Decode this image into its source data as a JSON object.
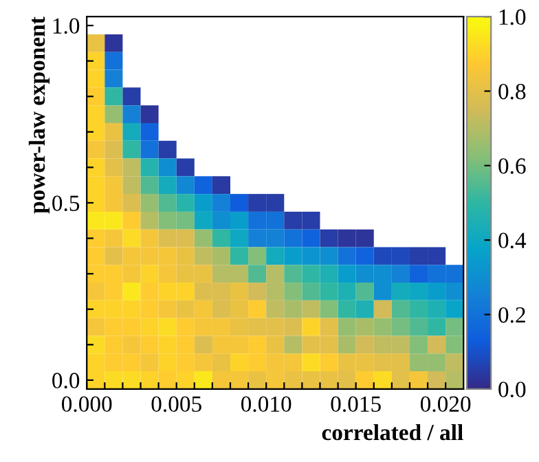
{
  "chart_data": {
    "type": "heatmap",
    "xlabel": "correlated / all",
    "ylabel": "power-law exponent",
    "x": [
      0.0005,
      0.0015,
      0.0025,
      0.0035,
      0.0045,
      0.0055,
      0.0065,
      0.0075,
      0.0085,
      0.0095,
      0.0105,
      0.0115,
      0.0125,
      0.0135,
      0.0145,
      0.0155,
      0.0165,
      0.0175,
      0.0185,
      0.0195,
      0.0205
    ],
    "y": [
      0.95,
      0.9,
      0.85,
      0.8,
      0.75,
      0.7,
      0.65,
      0.6,
      0.55,
      0.5,
      0.45,
      0.4,
      0.35,
      0.3,
      0.25,
      0.2,
      0.15,
      0.1,
      0.05,
      0.0
    ],
    "xlim": [
      0,
      0.021
    ],
    "ylim": [
      -0.025,
      1.025
    ],
    "xticks": [
      {
        "value": 0,
        "label": "0.000"
      },
      {
        "value": 0.001,
        "label": null
      },
      {
        "value": 0.002,
        "label": null
      },
      {
        "value": 0.003,
        "label": null
      },
      {
        "value": 0.004,
        "label": null
      },
      {
        "value": 0.005,
        "label": "0.005"
      },
      {
        "value": 0.006,
        "label": null
      },
      {
        "value": 0.007,
        "label": null
      },
      {
        "value": 0.008,
        "label": null
      },
      {
        "value": 0.009,
        "label": null
      },
      {
        "value": 0.01,
        "label": "0.010"
      },
      {
        "value": 0.011,
        "label": null
      },
      {
        "value": 0.012,
        "label": null
      },
      {
        "value": 0.013,
        "label": null
      },
      {
        "value": 0.014,
        "label": null
      },
      {
        "value": 0.015,
        "label": "0.015"
      },
      {
        "value": 0.016,
        "label": null
      },
      {
        "value": 0.017,
        "label": null
      },
      {
        "value": 0.018,
        "label": null
      },
      {
        "value": 0.019,
        "label": null
      },
      {
        "value": 0.02,
        "label": "0.020"
      }
    ],
    "yticks": [
      {
        "value": 0,
        "label": "0.0"
      },
      {
        "value": 0.1,
        "label": null
      },
      {
        "value": 0.2,
        "label": null
      },
      {
        "value": 0.3,
        "label": null
      },
      {
        "value": 0.4,
        "label": null
      },
      {
        "value": 0.5,
        "label": "0.5"
      },
      {
        "value": 0.6,
        "label": null
      },
      {
        "value": 0.7,
        "label": null
      },
      {
        "value": 0.8,
        "label": null
      },
      {
        "value": 0.9,
        "label": null
      },
      {
        "value": 1,
        "label": "1.0"
      }
    ],
    "clim": [
      0,
      1
    ],
    "cticks": [
      {
        "value": 0,
        "label": "0.0"
      },
      {
        "value": 0.2,
        "label": "0.2"
      },
      {
        "value": 0.4,
        "label": "0.4"
      },
      {
        "value": 0.6,
        "label": "0.6"
      },
      {
        "value": 0.8,
        "label": "0.8"
      },
      {
        "value": 1,
        "label": "1.0"
      }
    ],
    "cells": [
      [
        0.82,
        0.03,
        null,
        null,
        null,
        null,
        null,
        null,
        null,
        null,
        null,
        null,
        null,
        null,
        null,
        null,
        null,
        null,
        null,
        null,
        null
      ],
      [
        0.9,
        0.2,
        null,
        null,
        null,
        null,
        null,
        null,
        null,
        null,
        null,
        null,
        null,
        null,
        null,
        null,
        null,
        null,
        null,
        null,
        null
      ],
      [
        0.9,
        0.25,
        null,
        null,
        null,
        null,
        null,
        null,
        null,
        null,
        null,
        null,
        null,
        null,
        null,
        null,
        null,
        null,
        null,
        null,
        null
      ],
      [
        0.88,
        0.5,
        0.05,
        null,
        null,
        null,
        null,
        null,
        null,
        null,
        null,
        null,
        null,
        null,
        null,
        null,
        null,
        null,
        null,
        null,
        null
      ],
      [
        0.9,
        0.65,
        0.25,
        0.03,
        null,
        null,
        null,
        null,
        null,
        null,
        null,
        null,
        null,
        null,
        null,
        null,
        null,
        null,
        null,
        null,
        null
      ],
      [
        0.9,
        0.82,
        0.42,
        0.15,
        null,
        null,
        null,
        null,
        null,
        null,
        null,
        null,
        null,
        null,
        null,
        null,
        null,
        null,
        null,
        null,
        null
      ],
      [
        0.85,
        0.78,
        0.5,
        0.2,
        0.05,
        null,
        null,
        null,
        null,
        null,
        null,
        null,
        null,
        null,
        null,
        null,
        null,
        null,
        null,
        null,
        null
      ],
      [
        0.9,
        0.8,
        0.72,
        0.47,
        0.3,
        0.05,
        null,
        null,
        null,
        null,
        null,
        null,
        null,
        null,
        null,
        null,
        null,
        null,
        null,
        null,
        null
      ],
      [
        0.9,
        0.85,
        0.72,
        0.55,
        0.42,
        0.27,
        0.15,
        0.04,
        null,
        null,
        null,
        null,
        null,
        null,
        null,
        null,
        null,
        null,
        null,
        null,
        null
      ],
      [
        0.9,
        0.85,
        0.78,
        0.65,
        0.55,
        0.48,
        0.35,
        0.25,
        0.13,
        0.05,
        0.05,
        null,
        null,
        null,
        null,
        null,
        null,
        null,
        null,
        null,
        null
      ],
      [
        0.95,
        0.95,
        0.88,
        0.7,
        0.62,
        0.6,
        0.4,
        0.3,
        0.35,
        0.2,
        0.2,
        0.05,
        0.05,
        null,
        null,
        null,
        null,
        null,
        null,
        null,
        null
      ],
      [
        0.88,
        0.85,
        0.92,
        0.85,
        0.78,
        0.78,
        0.65,
        0.5,
        0.4,
        0.25,
        0.25,
        0.2,
        0.15,
        0.05,
        0.03,
        0.03,
        null,
        null,
        null,
        null,
        null
      ],
      [
        0.88,
        0.8,
        0.85,
        0.85,
        0.85,
        0.82,
        0.72,
        0.68,
        0.5,
        0.62,
        0.42,
        0.35,
        0.32,
        0.3,
        0.2,
        0.15,
        0.08,
        0.08,
        0.05,
        0.05,
        null
      ],
      [
        0.88,
        0.88,
        0.85,
        0.9,
        0.85,
        0.82,
        0.82,
        0.7,
        0.7,
        0.55,
        0.7,
        0.55,
        0.5,
        0.45,
        0.35,
        0.3,
        0.3,
        0.25,
        0.15,
        0.2,
        0.2
      ],
      [
        0.85,
        0.88,
        0.95,
        0.88,
        0.9,
        0.9,
        0.78,
        0.78,
        0.82,
        0.75,
        0.7,
        0.62,
        0.55,
        0.5,
        0.45,
        0.55,
        0.3,
        0.42,
        0.4,
        0.35,
        0.3
      ],
      [
        0.9,
        0.9,
        0.9,
        0.88,
        0.85,
        0.82,
        0.85,
        0.78,
        0.82,
        0.88,
        0.72,
        0.68,
        0.72,
        0.62,
        0.5,
        0.45,
        0.75,
        0.55,
        0.5,
        0.45,
        0.38
      ],
      [
        0.85,
        0.88,
        0.88,
        0.9,
        0.92,
        0.88,
        0.85,
        0.85,
        0.82,
        0.8,
        0.8,
        0.78,
        0.9,
        0.8,
        0.65,
        0.68,
        0.65,
        0.6,
        0.55,
        0.5,
        0.6
      ],
      [
        0.92,
        0.88,
        0.85,
        0.88,
        0.9,
        0.88,
        0.78,
        0.85,
        0.85,
        0.88,
        0.82,
        0.7,
        0.8,
        0.8,
        0.68,
        0.75,
        0.72,
        0.72,
        0.62,
        0.75,
        0.62
      ],
      [
        0.9,
        0.88,
        0.88,
        0.85,
        0.9,
        0.88,
        0.85,
        0.82,
        0.9,
        0.88,
        0.85,
        0.85,
        0.92,
        0.88,
        0.82,
        0.82,
        0.8,
        0.8,
        0.65,
        0.65,
        0.72
      ],
      [
        0.9,
        0.92,
        0.92,
        0.9,
        0.88,
        0.9,
        0.95,
        0.85,
        0.85,
        0.82,
        0.85,
        0.82,
        0.82,
        0.82,
        0.8,
        0.88,
        0.92,
        0.8,
        0.85,
        0.75,
        0.7
      ]
    ]
  }
}
